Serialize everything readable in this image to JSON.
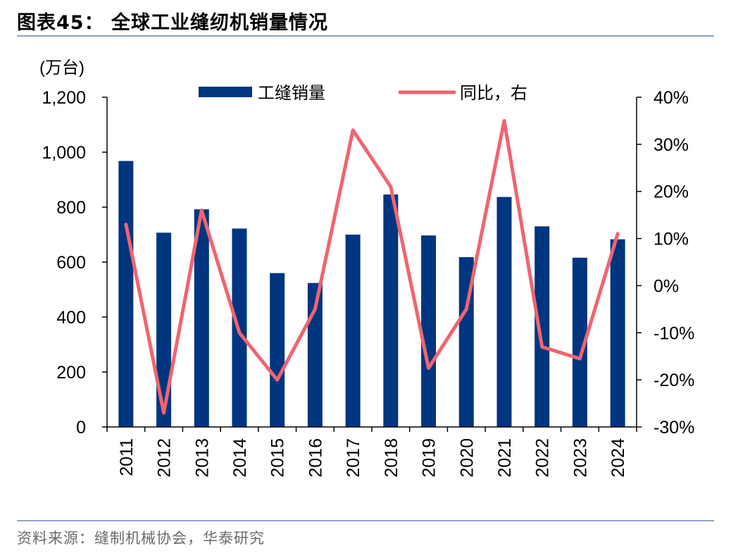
{
  "figure": {
    "title": "图表45：  全球工业缝纫机销量情况",
    "source": "资料来源：缝制机械协会，华泰研究"
  },
  "chart_data": {
    "type": "bar+line",
    "categories": [
      "2011",
      "2012",
      "2013",
      "2014",
      "2015",
      "2016",
      "2017",
      "2018",
      "2019",
      "2020",
      "2021",
      "2022",
      "2023",
      "2024"
    ],
    "series": [
      {
        "name": "工缝销量",
        "type": "bar",
        "axis": "left",
        "color": "#003580",
        "values": [
          968,
          707,
          792,
          722,
          560,
          524,
          700,
          846,
          697,
          618,
          837,
          730,
          616,
          683
        ]
      },
      {
        "name": "同比，右",
        "type": "line",
        "axis": "right",
        "color": "#f06470",
        "values": [
          13,
          -27,
          16,
          -10,
          -20,
          -5,
          33,
          21,
          -17.5,
          -5,
          35,
          -13,
          -15.5,
          11
        ]
      }
    ],
    "y_left": {
      "unit_label": "(万台)",
      "range": [
        0,
        1200
      ],
      "ticks": [
        0,
        200,
        400,
        600,
        800,
        1000,
        1200
      ],
      "tick_labels": [
        "0",
        "200",
        "400",
        "600",
        "800",
        "1,000",
        "1,200"
      ]
    },
    "y_right": {
      "range": [
        -30,
        40
      ],
      "ticks": [
        -30,
        -20,
        -10,
        0,
        10,
        20,
        30,
        40
      ],
      "tick_labels": [
        "-30%",
        "-20%",
        "-10%",
        "0%",
        "10%",
        "20%",
        "30%",
        "40%"
      ]
    },
    "legend_position": "top",
    "grid": false
  }
}
